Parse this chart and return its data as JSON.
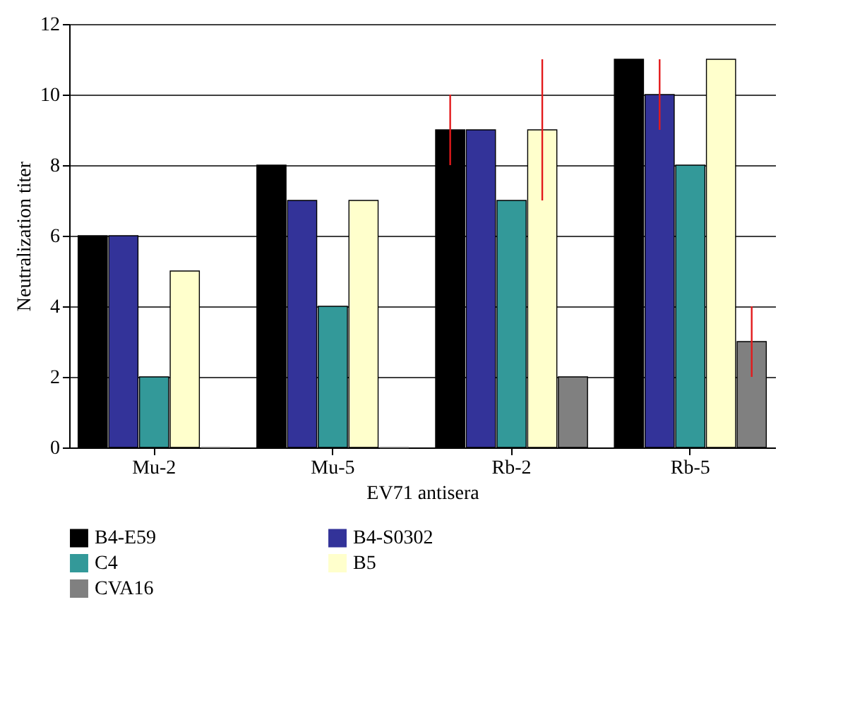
{
  "chart_data": {
    "type": "bar",
    "xlabel": "EV71 antisera",
    "ylabel": "Neutralization titer",
    "categories": [
      "Mu-2",
      "Mu-5",
      "Rb-2",
      "Rb-5"
    ],
    "series": [
      {
        "name": "B4-E59",
        "color": "#000000",
        "values": [
          6,
          8,
          9,
          11
        ],
        "errors": [
          null,
          null,
          1,
          null
        ]
      },
      {
        "name": "B4-S0302",
        "color": "#333399",
        "values": [
          6,
          7,
          9,
          10
        ],
        "errors": [
          null,
          null,
          null,
          1
        ]
      },
      {
        "name": "C4",
        "color": "#339999",
        "values": [
          2,
          4,
          7,
          8
        ]
      },
      {
        "name": "B5",
        "color": "#ffffcc",
        "values": [
          5,
          7,
          9,
          11
        ],
        "errors": [
          null,
          null,
          2,
          null
        ]
      },
      {
        "name": "CVA16",
        "color": "#808080",
        "values": [
          0,
          0,
          2,
          3
        ],
        "errors": [
          null,
          null,
          null,
          1
        ]
      }
    ],
    "ylim": [
      0,
      12
    ],
    "yticks": [
      0,
      2,
      4,
      6,
      8,
      10,
      12
    ],
    "grid": "y",
    "legend": "bottom"
  }
}
